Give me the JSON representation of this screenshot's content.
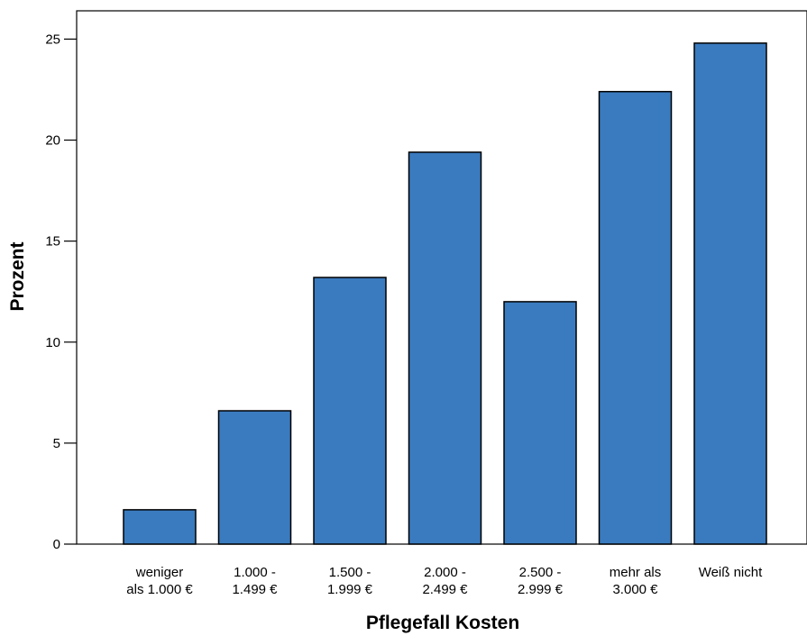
{
  "chart_data": {
    "type": "bar",
    "title": "",
    "xlabel": "Pflegefall Kosten",
    "ylabel": "Prozent",
    "ylim": [
      0,
      25
    ],
    "yticks": [
      0,
      5,
      10,
      15,
      20,
      25
    ],
    "grid": false,
    "bar_color": "#3A7BBF",
    "categories": [
      [
        "weniger",
        "als 1.000 €"
      ],
      [
        "1.000 -",
        "1.499 €"
      ],
      [
        "1.500 -",
        "1.999 €"
      ],
      [
        "2.000 -",
        "2.499 €"
      ],
      [
        "2.500 -",
        "2.999 €"
      ],
      [
        "mehr als",
        "3.000 €"
      ],
      [
        "Weiß nicht"
      ]
    ],
    "values": [
      1.7,
      6.6,
      13.2,
      19.4,
      12.0,
      22.4,
      24.8
    ]
  }
}
